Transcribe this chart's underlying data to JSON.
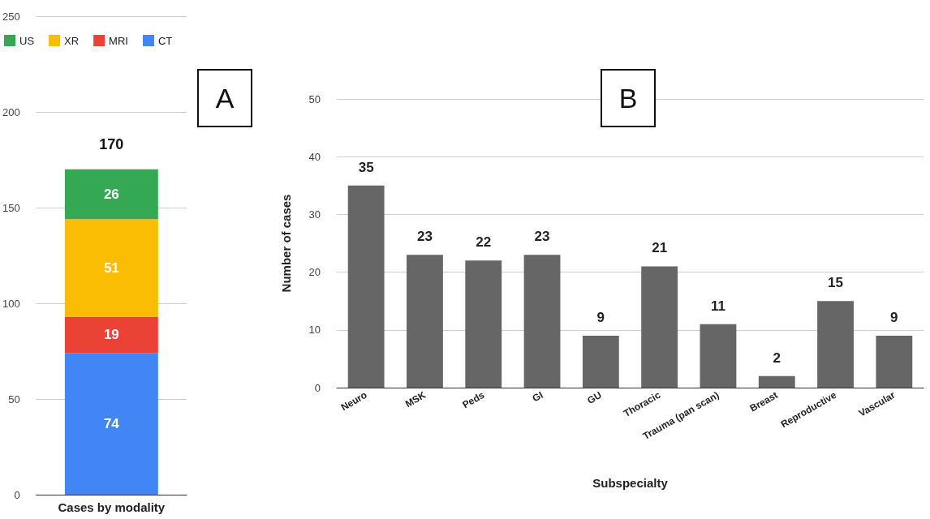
{
  "chart_data": [
    {
      "type": "bar",
      "stacked": true,
      "categories": [
        "Cases by modality"
      ],
      "series": [
        {
          "name": "CT",
          "color": "#4285f4",
          "values": [
            74
          ]
        },
        {
          "name": "MRI",
          "color": "#ea4335",
          "values": [
            19
          ]
        },
        {
          "name": "XR",
          "color": "#fbbc04",
          "values": [
            51
          ]
        },
        {
          "name": "US",
          "color": "#34a853",
          "values": [
            26
          ]
        }
      ],
      "totals": [
        "170"
      ],
      "ylim": [
        0,
        250
      ],
      "yticks": [
        0,
        50,
        100,
        150,
        200,
        250
      ],
      "grid": "y",
      "legend": "top left",
      "data_labels": true,
      "annotations": [
        "A"
      ]
    },
    {
      "type": "bar",
      "categories": [
        "Neuro",
        "MSK",
        "Peds",
        "GI",
        "GU",
        "Thoracic",
        "Trauma (pan scan)",
        "Breast",
        "Reproductive",
        "Vascular"
      ],
      "values": [
        35,
        23,
        22,
        23,
        9,
        21,
        11,
        2,
        15,
        9
      ],
      "color": "#666666",
      "xlabel": "Subspecialty",
      "ylabel": "Number of cases",
      "ylim": [
        0,
        50
      ],
      "yticks": [
        0,
        10,
        20,
        30,
        40,
        50
      ],
      "grid": "y",
      "data_labels": true,
      "annotations": [
        "B"
      ]
    }
  ]
}
